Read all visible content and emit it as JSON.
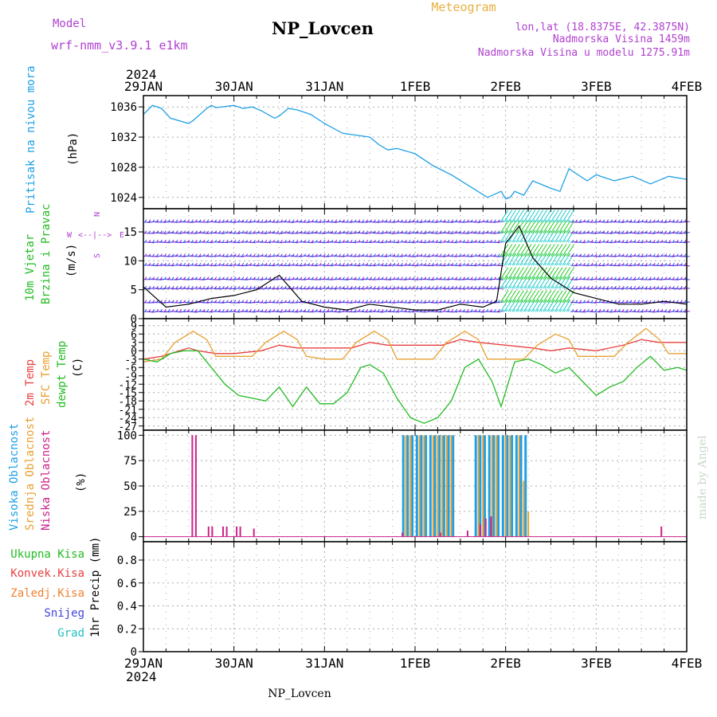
{
  "header": {
    "model_label": "Model",
    "model_name": "wrf-nmm_v3.9.1 e1km",
    "station": "NP_Lovcen",
    "product": "Meteogram",
    "lonlat": "lon,lat (18.8375E, 42.3875N)",
    "altitude": "Nadmorska Visina 1459m",
    "altitude_model": "Nadmorska Visina u modelu 1275.91m",
    "footer_station": "NP_Lovcen",
    "credit": "made by Angel"
  },
  "time_axis": {
    "year": "2024",
    "days": [
      "29JAN",
      "30JAN",
      "31JAN",
      "1FEB",
      "2FEB",
      "3FEB",
      "4FEB"
    ]
  },
  "colors": {
    "pressure": "#1ea0e6",
    "temp2m": "#e84040",
    "sfc_temp": "#e8a030",
    "dewpt": "#22bb22",
    "vis_high": "#1ea0e6",
    "cloud_mid": "#e8a030",
    "cloud_low": "#cc2288",
    "label_green": "#22bb22",
    "label_red": "#e84040",
    "label_orange": "#f08030",
    "label_blue": "#4040e0",
    "label_cyan": "#20c0c0",
    "label_purple": "#b040d0",
    "header_gold": "#e8b040"
  },
  "chart_data": [
    {
      "type": "line",
      "title": "Pritisak na nivou mora",
      "ylabel": "(hPa)",
      "ylim": [
        1022.5,
        1037.5
      ],
      "yticks": [
        1024,
        1028,
        1032,
        1036
      ],
      "grid": true,
      "series": [
        {
          "name": "Pritisak na nivou mora",
          "x": [
            0,
            0.1,
            0.2,
            0.3,
            0.5,
            0.55,
            0.7,
            0.75,
            0.8,
            1.0,
            1.1,
            1.2,
            1.3,
            1.45,
            1.5,
            1.6,
            1.7,
            1.85,
            2.0,
            2.2,
            2.5,
            2.6,
            2.7,
            2.8,
            3.0,
            3.2,
            3.4,
            3.6,
            3.8,
            3.95,
            4.0,
            4.05,
            4.1,
            4.2,
            4.3,
            4.5,
            4.6,
            4.7,
            4.9,
            5.0,
            5.2,
            5.4,
            5.6,
            5.8,
            6.0
          ],
          "values": [
            1035.0,
            1036.2,
            1035.8,
            1034.5,
            1033.8,
            1034.2,
            1035.8,
            1036.2,
            1035.9,
            1036.2,
            1035.8,
            1036.0,
            1035.5,
            1034.5,
            1034.8,
            1035.8,
            1035.6,
            1035.0,
            1033.8,
            1032.5,
            1032.0,
            1031.0,
            1030.3,
            1030.5,
            1029.8,
            1028.2,
            1027.0,
            1025.5,
            1024.0,
            1024.8,
            1023.8,
            1024.0,
            1024.8,
            1024.3,
            1026.2,
            1025.2,
            1024.8,
            1027.8,
            1026.2,
            1027.0,
            1026.2,
            1026.8,
            1025.8,
            1026.8,
            1026.4
          ]
        }
      ]
    },
    {
      "type": "line",
      "title": "10m Vjetar Brzina i Pravac",
      "ylabel": "(m/s)",
      "ylim": [
        0,
        19
      ],
      "yticks": [
        0,
        5,
        10,
        15
      ],
      "grid": true,
      "compass": [
        "N",
        "E",
        "S",
        "W"
      ],
      "series": [
        {
          "name": "10m Vjetar Brzina",
          "x": [
            0,
            0.25,
            0.5,
            0.75,
            1.0,
            1.25,
            1.5,
            1.75,
            2.0,
            2.25,
            2.5,
            2.75,
            3.0,
            3.25,
            3.5,
            3.75,
            3.9,
            4.0,
            4.15,
            4.3,
            4.5,
            4.75,
            5.0,
            5.25,
            5.5,
            5.75,
            6.0
          ],
          "values": [
            5.5,
            2.0,
            2.5,
            3.5,
            4.0,
            5.0,
            7.5,
            3.0,
            2.0,
            1.5,
            2.5,
            2.0,
            1.5,
            1.5,
            2.5,
            2.0,
            3.0,
            13.0,
            16.0,
            10.5,
            7.0,
            4.5,
            3.5,
            2.5,
            2.5,
            3.0,
            2.5
          ]
        }
      ]
    },
    {
      "type": "line",
      "title": "2m Temp / SFC Temp / dewpt Temp",
      "ylabel": "(C)",
      "ylim": [
        -28.5,
        11.5
      ],
      "yticks": [
        -27,
        -24,
        -21,
        -18,
        -15,
        -12,
        -9,
        -6,
        -3,
        0,
        3,
        6,
        9
      ],
      "grid": true,
      "series": [
        {
          "name": "2m Temp",
          "x": [
            0,
            0.2,
            0.5,
            0.6,
            0.8,
            1.0,
            1.3,
            1.5,
            1.7,
            2.0,
            2.3,
            2.5,
            2.7,
            3.0,
            3.3,
            3.5,
            3.7,
            4.0,
            4.3,
            4.5,
            4.7,
            5.0,
            5.3,
            5.5,
            5.7,
            6.0
          ],
          "values": [
            -3,
            -2,
            1,
            0,
            -1,
            -1,
            0,
            2,
            1,
            1,
            1,
            3,
            2,
            2,
            2,
            4,
            3,
            2,
            1,
            0,
            1,
            0,
            2,
            4,
            3,
            3
          ]
        },
        {
          "name": "SFC Temp",
          "x": [
            0,
            0.2,
            0.35,
            0.55,
            0.7,
            0.8,
            1.0,
            1.2,
            1.35,
            1.55,
            1.7,
            1.8,
            2.0,
            2.2,
            2.35,
            2.55,
            2.7,
            2.8,
            3.0,
            3.2,
            3.35,
            3.55,
            3.7,
            3.8,
            4.0,
            4.2,
            4.35,
            4.55,
            4.7,
            4.8,
            5.0,
            5.2,
            5.35,
            5.55,
            5.7,
            5.8,
            6.0
          ],
          "values": [
            -4,
            -3,
            3,
            7,
            4,
            -2,
            -2,
            -2,
            3,
            7,
            4,
            -2,
            -3,
            -3,
            3,
            7,
            4,
            -3,
            -3,
            -3,
            3,
            7,
            4,
            -3,
            -3,
            -3,
            2,
            6,
            4,
            -2,
            -2,
            -2,
            3,
            8,
            4,
            -1,
            -1
          ]
        },
        {
          "name": "dewpt Temp",
          "x": [
            0,
            0.15,
            0.3,
            0.45,
            0.6,
            0.75,
            0.9,
            1.05,
            1.2,
            1.35,
            1.5,
            1.65,
            1.8,
            1.95,
            2.1,
            2.25,
            2.4,
            2.5,
            2.65,
            2.8,
            2.95,
            3.1,
            3.25,
            3.4,
            3.55,
            3.7,
            3.85,
            3.95,
            4.1,
            4.25,
            4.4,
            4.55,
            4.7,
            4.85,
            5.0,
            5.15,
            5.3,
            5.45,
            5.6,
            5.75,
            5.9,
            6.0
          ],
          "values": [
            -3,
            -4,
            -1,
            0,
            0,
            -6,
            -12,
            -16,
            -17,
            -18,
            -13,
            -20,
            -13,
            -19,
            -19,
            -15,
            -6,
            -5,
            -8,
            -17,
            -24,
            -26,
            -24,
            -18,
            -6,
            -3,
            -11,
            -20,
            -4,
            -3,
            -5,
            -8,
            -6,
            -11,
            -16,
            -13,
            -11,
            -6,
            -2,
            -7,
            -6,
            -7
          ]
        }
      ]
    },
    {
      "type": "bar",
      "title": "Visoka / Srednja / Niska Oblacnost",
      "ylabel": "(%)",
      "ylim": [
        -5,
        105
      ],
      "yticks": [
        0,
        25,
        50,
        75,
        100
      ],
      "grid": true,
      "series": [
        {
          "name": "Visoka Oblacnost",
          "x": [
            2.87,
            2.92,
            2.97,
            3.02,
            3.07,
            3.12,
            3.17,
            3.22,
            3.27,
            3.32,
            3.37,
            3.42,
            3.67,
            3.72,
            3.77,
            3.82,
            3.87,
            3.92,
            3.97,
            4.02,
            4.07,
            4.12,
            4.17,
            4.22
          ],
          "values": [
            100,
            100,
            100,
            100,
            100,
            100,
            100,
            100,
            100,
            100,
            100,
            100,
            100,
            100,
            100,
            100,
            100,
            100,
            100,
            100,
            100,
            100,
            100,
            100
          ]
        },
        {
          "name": "Srednja Oblacnost",
          "x": [
            2.9,
            2.95,
            3.05,
            3.1,
            3.2,
            3.25,
            3.3,
            3.35,
            3.4,
            3.7,
            3.75,
            3.85,
            3.9,
            4.0,
            4.05,
            4.15,
            4.2,
            4.25
          ],
          "values": [
            100,
            100,
            100,
            100,
            100,
            100,
            100,
            100,
            100,
            100,
            100,
            100,
            100,
            100,
            100,
            100,
            55,
            25
          ]
        },
        {
          "name": "Niska Oblacnost",
          "x": [
            0.54,
            0.58,
            0.72,
            0.76,
            0.88,
            0.92,
            1.03,
            1.07,
            1.22,
            2.86,
            3.28,
            3.58,
            3.72,
            3.78,
            3.84,
            5.72
          ],
          "values": [
            100,
            100,
            10,
            10,
            10,
            10,
            10,
            10,
            8,
            4,
            4,
            6,
            12,
            18,
            20,
            10
          ]
        }
      ]
    },
    {
      "type": "bar",
      "title": "Ukupna Kisa / Konvek.Kisa / Zaledj.Kisa / Snijeg / Grad",
      "ylabel": "1hr Precip (mm)",
      "ylim": [
        0,
        0.96
      ],
      "yticks": [
        0,
        0.2,
        0.4,
        0.6,
        0.8
      ],
      "grid": true,
      "series": [
        {
          "name": "Ukupna Kisa",
          "x": [],
          "values": []
        },
        {
          "name": "Konvek.Kisa",
          "x": [],
          "values": []
        },
        {
          "name": "Zaledj.Kisa",
          "x": [],
          "values": []
        },
        {
          "name": "Snijeg",
          "x": [],
          "values": []
        },
        {
          "name": "Grad",
          "x": [],
          "values": []
        }
      ]
    }
  ]
}
